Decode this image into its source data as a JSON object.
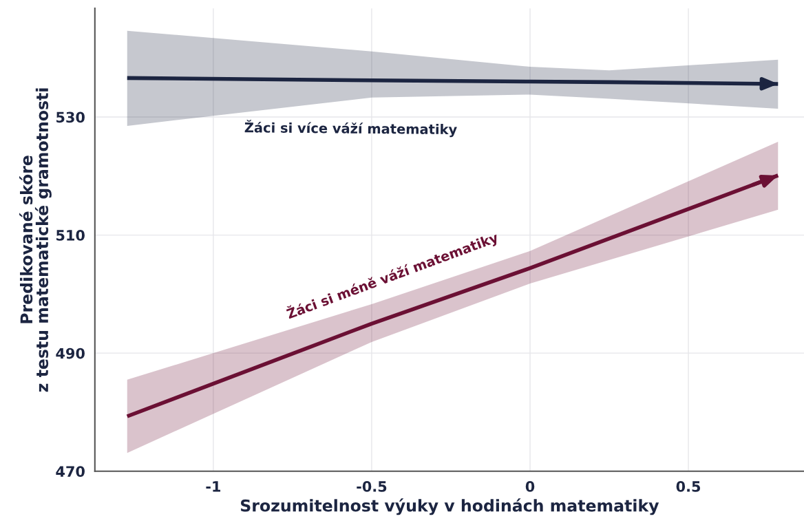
{
  "chart_data": {
    "type": "line",
    "xlabel": "Srozumitelnost výuky v hodinách matematiky",
    "ylabel": "Predikované skóre\nz testu matematické gramotnosti",
    "series": [
      {
        "name": "Žáci si více váží matematiky",
        "color": "#1c2541",
        "x": [
          -1.272,
          -0.5,
          0,
          0.25,
          0.783
        ],
        "values": [
          536.6,
          536.2,
          536.0,
          535.9,
          535.6
        ],
        "lower": [
          528.5,
          533.3,
          533.8,
          533.1,
          531.4
        ],
        "upper": [
          544.6,
          541.1,
          538.5,
          537.9,
          539.7
        ]
      },
      {
        "name": "Žáci si méně váží matematiky",
        "color": "#6b1034",
        "x": [
          -1.272,
          -0.5,
          0,
          0.783
        ],
        "values": [
          479.3,
          495.0,
          504.4,
          520.1
        ],
        "lower": [
          473.1,
          491.9,
          501.8,
          514.3
        ],
        "upper": [
          485.5,
          498.3,
          507.3,
          525.8
        ]
      }
    ],
    "xlim": [
      -1.374,
      0.865
    ],
    "ylim": [
      470,
      548.4
    ],
    "xticks": [
      -1,
      -0.5,
      0,
      0.5
    ],
    "yticks": [
      470,
      490,
      510,
      530
    ],
    "grid": true,
    "marker": "none",
    "line_style": "solid"
  }
}
